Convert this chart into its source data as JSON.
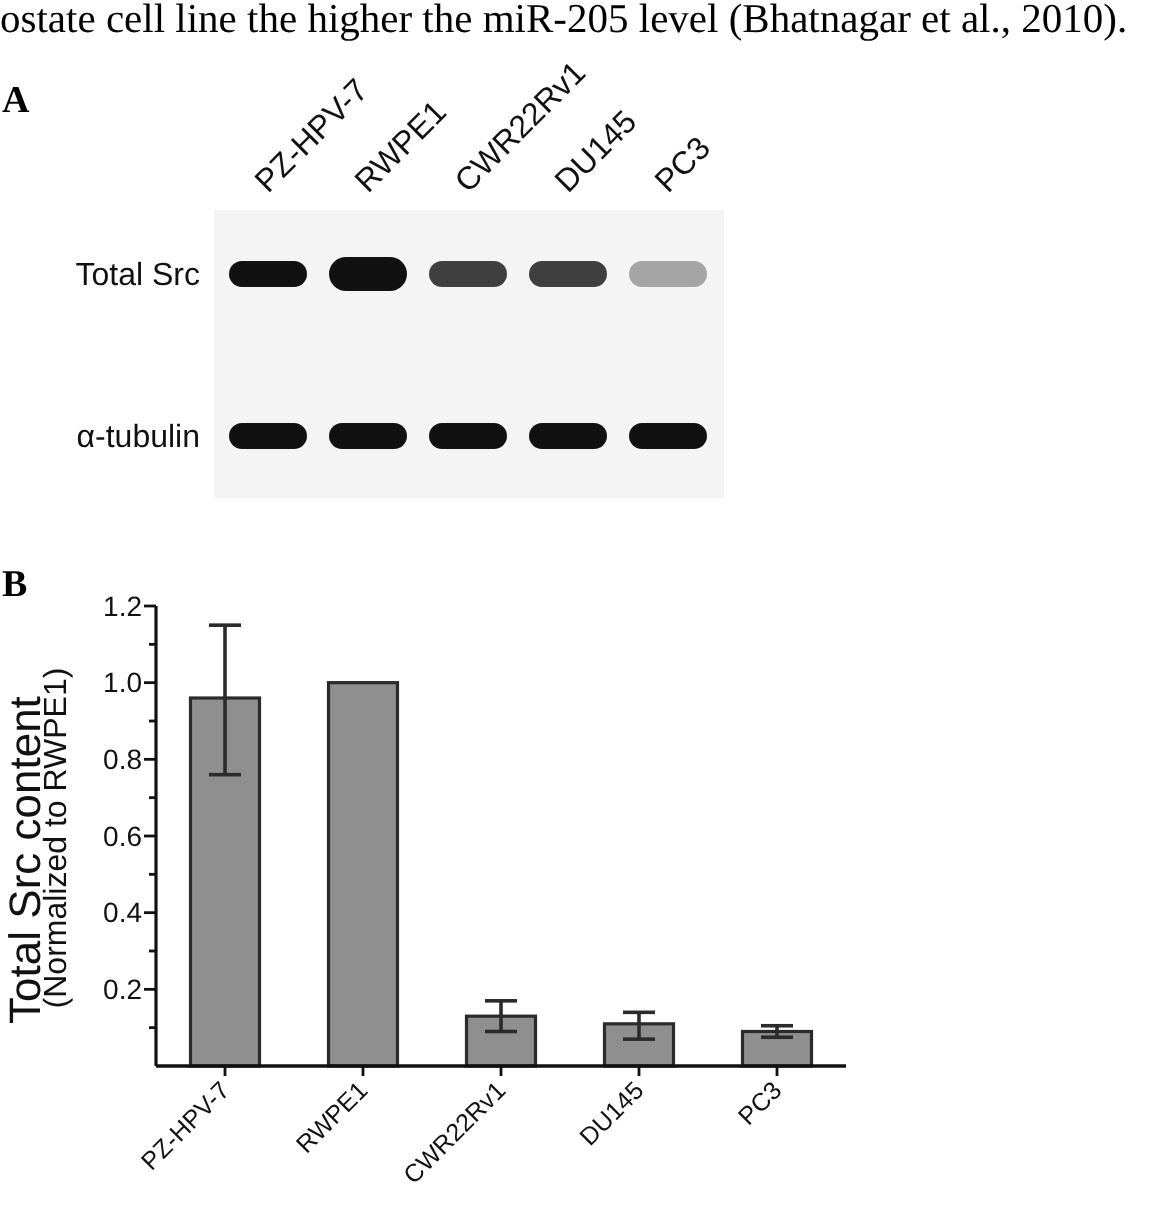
{
  "chart_data": [
    {
      "type": "other",
      "title": "A",
      "categories": [
        "PZ-HPV-7",
        "RWPE1",
        "CWR22Rv1",
        "DU145",
        "PC3"
      ],
      "y_categories": [
        "Total Src",
        "α-tubulin"
      ],
      "annotations": [
        "ostate cell line the higher the miR-205 level (Bhatnagar et al., 2010)."
      ]
    },
    {
      "type": "bar",
      "title": "B",
      "ylabel": "Total Src content\n(Normalized to RWPE1)",
      "categories": [
        "PZ-HPV-7",
        "RWPE1",
        "CWR22Rv1",
        "DU145",
        "PC3"
      ],
      "values": [
        0.96,
        1,
        0.13,
        0.11,
        0.09
      ],
      "errors": [
        [
          0.76,
          1.15
        ],
        null,
        0.04,
        [
          0.07,
          0.14
        ],
        0.015
      ],
      "color": "#8f8f8f",
      "ylim": [
        0,
        1.2
      ],
      "yticks": [
        {
          "value": 0.1,
          "label": null
        },
        0.2,
        {
          "value": 0.3,
          "label": null
        },
        0.4,
        {
          "value": 0.5,
          "label": null
        },
        0.6,
        {
          "value": 0.7,
          "label": null
        },
        0.8,
        {
          "value": 0.9,
          "label": null
        },
        {
          "value": 1,
          "label": "1.0"
        },
        {
          "value": 1.1,
          "label": null
        },
        1.2
      ]
    }
  ]
}
